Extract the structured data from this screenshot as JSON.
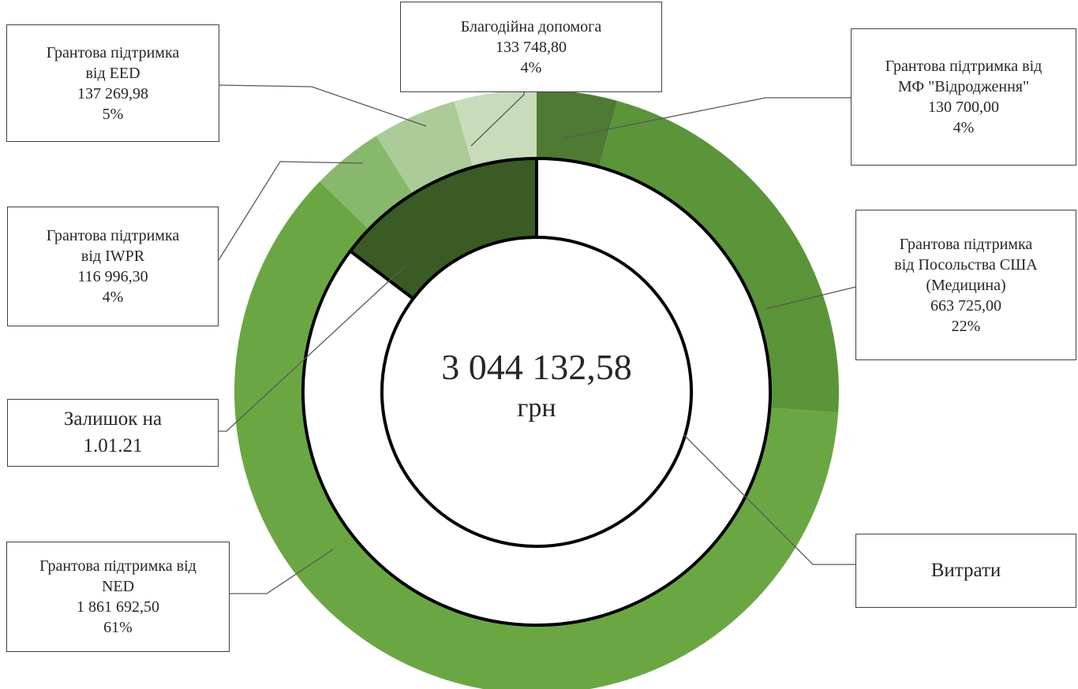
{
  "chart_data": {
    "type": "donut",
    "total": {
      "value": "3 044 132,58",
      "unit": "грн"
    },
    "outer_ring": [
      {
        "name": "Грантова підтримка від МФ \"Відродження\"",
        "label_lines": [
          "Грантова підтримка від",
          "МФ \"Відродження\""
        ],
        "value": 130700.0,
        "value_label": "130 700,00",
        "percent_label": "4%",
        "color": "#4e7a33"
      },
      {
        "name": "Грантова підтримка від Посольства США (Медицина)",
        "label_lines": [
          "Грантова підтримка",
          "від Посольства США",
          "(Медицина)"
        ],
        "value": 663725.0,
        "value_label": "663 725,00",
        "percent_label": "22%",
        "color": "#5b9439"
      },
      {
        "name": "Грантова підтримка від NED",
        "label_lines": [
          "Грантова підтримка від",
          "NED"
        ],
        "value": 1861692.5,
        "value_label": "1 861 692,50",
        "percent_label": "61%",
        "color": "#6aa743"
      },
      {
        "name": "Грантова підтримка від IWPR",
        "label_lines": [
          "Грантова підтримка",
          "від IWPR"
        ],
        "value": 116996.3,
        "value_label": "116 996,30",
        "percent_label": "4%",
        "color": "#88b86c"
      },
      {
        "name": "Грантова підтримка від EED",
        "label_lines": [
          "Грантова підтримка",
          "від EED"
        ],
        "value": 137269.98,
        "value_label": "137 269,98",
        "percent_label": "5%",
        "color": "#abcb98"
      },
      {
        "name": "Благодійна допомога",
        "label_lines": [
          "Благодійна допомога"
        ],
        "value": 133748.8,
        "value_label": "133 748,80",
        "percent_label": "4%",
        "color": "#c8dcbc"
      }
    ],
    "inner_ring": [
      {
        "name": "Витрати",
        "label_lines": [
          "Витрати"
        ],
        "fraction": 0.853,
        "color": "#ffffff"
      },
      {
        "name": "Залишок на 1.01.21",
        "label_lines": [
          "Залишок на",
          "1.01.21"
        ],
        "fraction": 0.147,
        "color": "#3a5b23"
      }
    ]
  }
}
